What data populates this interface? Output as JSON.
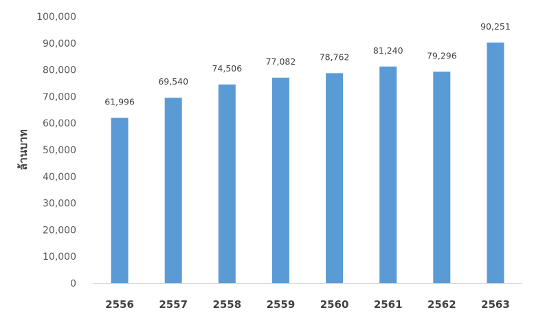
{
  "chart_data": {
    "type": "bar",
    "categories": [
      "2556",
      "2557",
      "2558",
      "2559",
      "2560",
      "2561",
      "2562",
      "2563"
    ],
    "values": [
      61996,
      69540,
      74506,
      77082,
      78762,
      81240,
      79296,
      90251
    ],
    "data_labels": [
      "61,996",
      "69,540",
      "74,506",
      "77,082",
      "78,762",
      "81,240",
      "79,296",
      "90,251"
    ],
    "ylabel": "ล้านบาท",
    "ylim": [
      0,
      100000
    ],
    "yticks": [
      0,
      10000,
      20000,
      30000,
      40000,
      50000,
      60000,
      70000,
      80000,
      90000,
      100000
    ],
    "ytick_labels": [
      "0",
      "10,000",
      "20,000",
      "30,000",
      "40,000",
      "50,000",
      "60,000",
      "70,000",
      "80,000",
      "90,000",
      "100,000"
    ],
    "grid": false,
    "bar_color": "#5b9bd5",
    "axis_color": "#d9d9d9"
  }
}
